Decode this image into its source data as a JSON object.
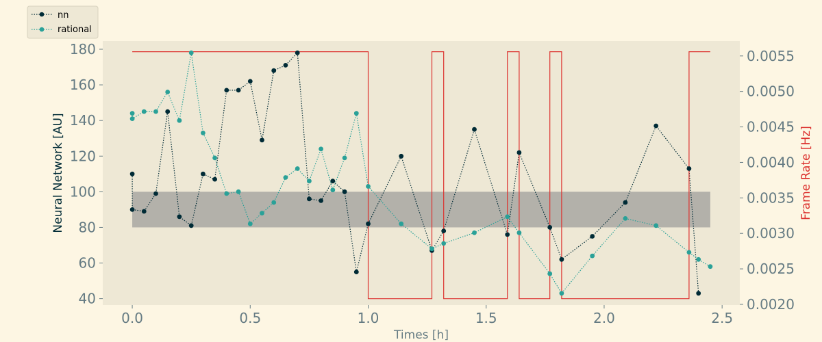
{
  "colors": {
    "page_background": "#fdf6e3",
    "plot_background": "#eee8d5",
    "nn": "#002b36",
    "rational": "#2aa198",
    "frame_rate": "#dc322f",
    "band": "#b3b1aa",
    "tick_text": "#657b83"
  },
  "chart_data": {
    "type": "line",
    "xlabel": "Times [h]",
    "ylabel_left": "Neural Network [AU]",
    "ylabel_right": "Frame Rate [Hz]",
    "xlim": [
      -0.125,
      2.575
    ],
    "ylim_left": [
      36.4,
      184.6
    ],
    "ylim_right": [
      0.00199,
      0.00571
    ],
    "x_ticks": [
      0.0,
      0.5,
      1.0,
      1.5,
      2.0,
      2.5
    ],
    "x_tick_labels": [
      "0.0",
      "0.5",
      "1.0",
      "1.5",
      "2.0",
      "2.5"
    ],
    "y_left_ticks": [
      40,
      60,
      80,
      100,
      120,
      140,
      160,
      180
    ],
    "y_left_tick_labels": [
      "40",
      "60",
      "80",
      "100",
      "120",
      "140",
      "160",
      "180"
    ],
    "y_right_ticks": [
      0.002,
      0.0025,
      0.003,
      0.0035,
      0.004,
      0.0045,
      0.005,
      0.0055
    ],
    "y_right_tick_labels": [
      "0.0020",
      "0.0025",
      "0.0030",
      "0.0035",
      "0.0040",
      "0.0045",
      "0.0050",
      "0.0055"
    ],
    "grid": false,
    "legend_position": "top-left, outside plot",
    "band": {
      "x_range": [
        0.0,
        2.45
      ],
      "y_range": [
        80,
        100
      ]
    },
    "series": [
      {
        "name": "nn",
        "style": "dotted line with circle markers",
        "axis": "left",
        "points": [
          [
            0.0,
            110
          ],
          [
            0.0,
            90
          ],
          [
            0.05,
            89
          ],
          [
            0.1,
            99
          ],
          [
            0.15,
            145
          ],
          [
            0.2,
            86
          ],
          [
            0.25,
            81
          ],
          [
            0.3,
            110
          ],
          [
            0.35,
            107
          ],
          [
            0.4,
            157
          ],
          [
            0.45,
            157
          ],
          [
            0.5,
            162
          ],
          [
            0.55,
            129
          ],
          [
            0.6,
            168
          ],
          [
            0.65,
            171
          ],
          [
            0.7,
            178
          ],
          [
            0.75,
            96
          ],
          [
            0.8,
            95
          ],
          [
            0.85,
            106
          ],
          [
            0.9,
            100
          ],
          [
            0.95,
            55
          ],
          [
            1.0,
            82
          ],
          [
            1.14,
            120
          ],
          [
            1.27,
            67
          ],
          [
            1.32,
            78
          ],
          [
            1.45,
            135
          ],
          [
            1.59,
            76
          ],
          [
            1.64,
            122
          ],
          [
            1.77,
            80
          ],
          [
            1.82,
            62
          ],
          [
            1.95,
            75
          ],
          [
            2.09,
            94
          ],
          [
            2.22,
            137
          ],
          [
            2.36,
            113
          ],
          [
            2.4,
            43
          ]
        ]
      },
      {
        "name": "rational",
        "style": "dotted line with circle markers",
        "axis": "left",
        "points": [
          [
            0.0,
            144
          ],
          [
            0.0,
            141
          ],
          [
            0.05,
            145
          ],
          [
            0.1,
            145
          ],
          [
            0.15,
            156
          ],
          [
            0.2,
            140
          ],
          [
            0.25,
            178
          ],
          [
            0.3,
            133
          ],
          [
            0.35,
            119
          ],
          [
            0.4,
            99
          ],
          [
            0.45,
            100
          ],
          [
            0.5,
            82
          ],
          [
            0.55,
            88
          ],
          [
            0.6,
            94
          ],
          [
            0.65,
            108
          ],
          [
            0.7,
            113
          ],
          [
            0.75,
            106
          ],
          [
            0.8,
            124
          ],
          [
            0.85,
            101
          ],
          [
            0.9,
            119
          ],
          [
            0.95,
            144
          ],
          [
            1.0,
            103
          ],
          [
            1.14,
            82
          ],
          [
            1.27,
            68
          ],
          [
            1.32,
            71
          ],
          [
            1.45,
            77
          ],
          [
            1.59,
            86
          ],
          [
            1.64,
            77
          ],
          [
            1.77,
            54
          ],
          [
            1.82,
            43
          ],
          [
            1.95,
            64
          ],
          [
            2.09,
            85
          ],
          [
            2.22,
            81
          ],
          [
            2.36,
            66
          ],
          [
            2.4,
            62
          ],
          [
            2.45,
            58
          ]
        ]
      },
      {
        "name": "",
        "style": "step line",
        "axis": "right",
        "points": [
          [
            0.0,
            0.00556
          ],
          [
            1.0,
            0.00556
          ],
          [
            1.0,
            0.00208
          ],
          [
            1.27,
            0.00208
          ],
          [
            1.27,
            0.00556
          ],
          [
            1.32,
            0.00556
          ],
          [
            1.32,
            0.00208
          ],
          [
            1.59,
            0.00208
          ],
          [
            1.59,
            0.00556
          ],
          [
            1.64,
            0.00556
          ],
          [
            1.64,
            0.00208
          ],
          [
            1.77,
            0.00208
          ],
          [
            1.77,
            0.00556
          ],
          [
            1.82,
            0.00556
          ],
          [
            1.82,
            0.00208
          ],
          [
            2.36,
            0.00208
          ],
          [
            2.36,
            0.00556
          ],
          [
            2.45,
            0.00556
          ]
        ]
      }
    ]
  }
}
